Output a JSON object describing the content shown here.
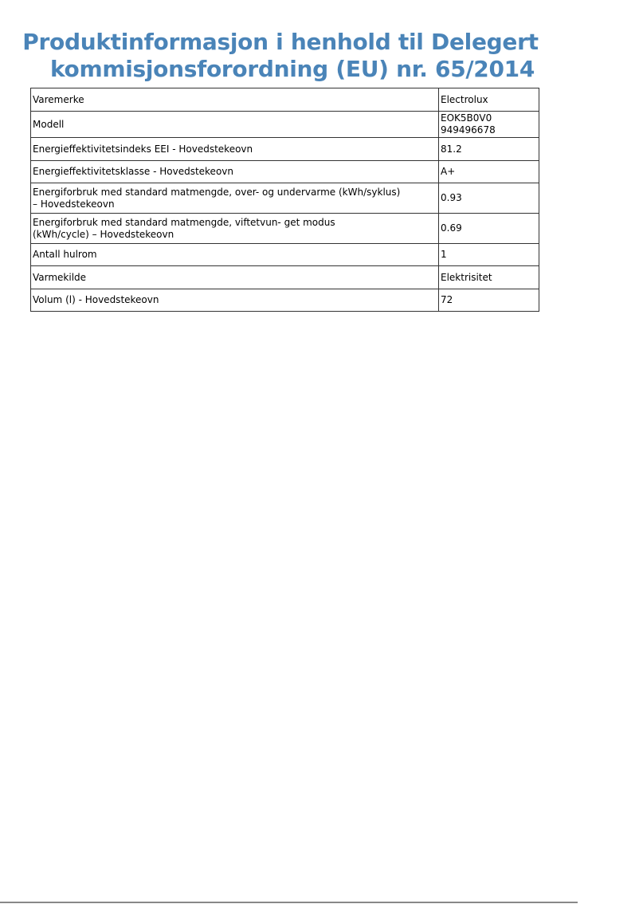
{
  "title": {
    "line1": "Produktinformasjon i henhold til Delegert",
    "line2": "kommisjonsforordning (EU) nr.  65/2014"
  },
  "colors": {
    "title": "#4a84b8"
  },
  "rows": [
    {
      "label": "Varemerke",
      "value": "Electrolux"
    },
    {
      "label": "Modell",
      "value": "EOK5B0V0 949496678"
    },
    {
      "label": "Energieffektivitetsindeks EEI - Hovedstekeovn",
      "value": "81.2"
    },
    {
      "label": "Energieffektivitetsklasse - Hovedstekeovn",
      "value": "A+"
    },
    {
      "label": "Energiforbruk med standard matmengde, over- og undervarme (kWh/syklus) – Hovedstekeovn",
      "value": "0.93"
    },
    {
      "label": "Energiforbruk med standard matmengde, viftetvun- get modus (kWh/cycle) – Hovedstekeovn",
      "value": "0.69"
    },
    {
      "label": "Antall hulrom",
      "value": "1"
    },
    {
      "label": "Varmekilde",
      "value": "Elektrisitet"
    },
    {
      "label": "Volum (l) - Hovedstekeovn",
      "value": "72"
    }
  ]
}
